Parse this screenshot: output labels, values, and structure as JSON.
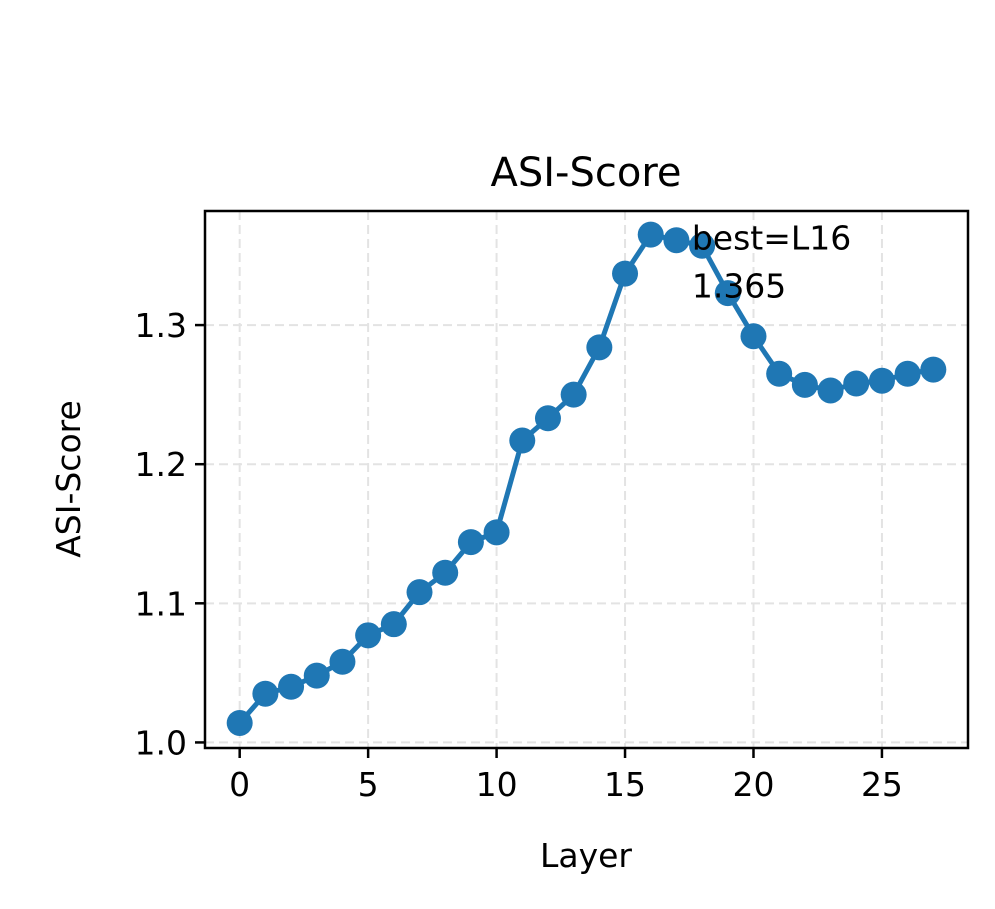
{
  "chart_data": {
    "type": "line",
    "title": "ASI-Score",
    "xlabel": "Layer",
    "ylabel": "ASI-Score",
    "xlim": [
      -1.35,
      28.35
    ],
    "ylim": [
      0.996,
      1.382
    ],
    "xticks": [
      0,
      5,
      10,
      15,
      20,
      25
    ],
    "xtick_labels": [
      "0",
      "5",
      "10",
      "15",
      "20",
      "25"
    ],
    "yticks": [
      1.0,
      1.1,
      1.2,
      1.3
    ],
    "ytick_labels": [
      "1.0",
      "1.1",
      "1.2",
      "1.3"
    ],
    "grid": true,
    "series": [
      {
        "color": "#1f77b4",
        "marker": "circle",
        "x": [
          0,
          1,
          2,
          3,
          4,
          5,
          6,
          7,
          8,
          9,
          10,
          11,
          12,
          13,
          14,
          15,
          16,
          17,
          18,
          19,
          20,
          21,
          22,
          23,
          24,
          25,
          26,
          27
        ],
        "y": [
          1.014,
          1.035,
          1.04,
          1.048,
          1.058,
          1.077,
          1.085,
          1.108,
          1.122,
          1.144,
          1.151,
          1.217,
          1.233,
          1.25,
          1.284,
          1.337,
          1.365,
          1.361,
          1.357,
          1.323,
          1.292,
          1.265,
          1.257,
          1.253,
          1.258,
          1.26,
          1.265,
          1.268
        ]
      }
    ],
    "annotation": {
      "lines": [
        "best=L16",
        "1.365"
      ],
      "x": 17.6,
      "y": 1.365
    }
  }
}
